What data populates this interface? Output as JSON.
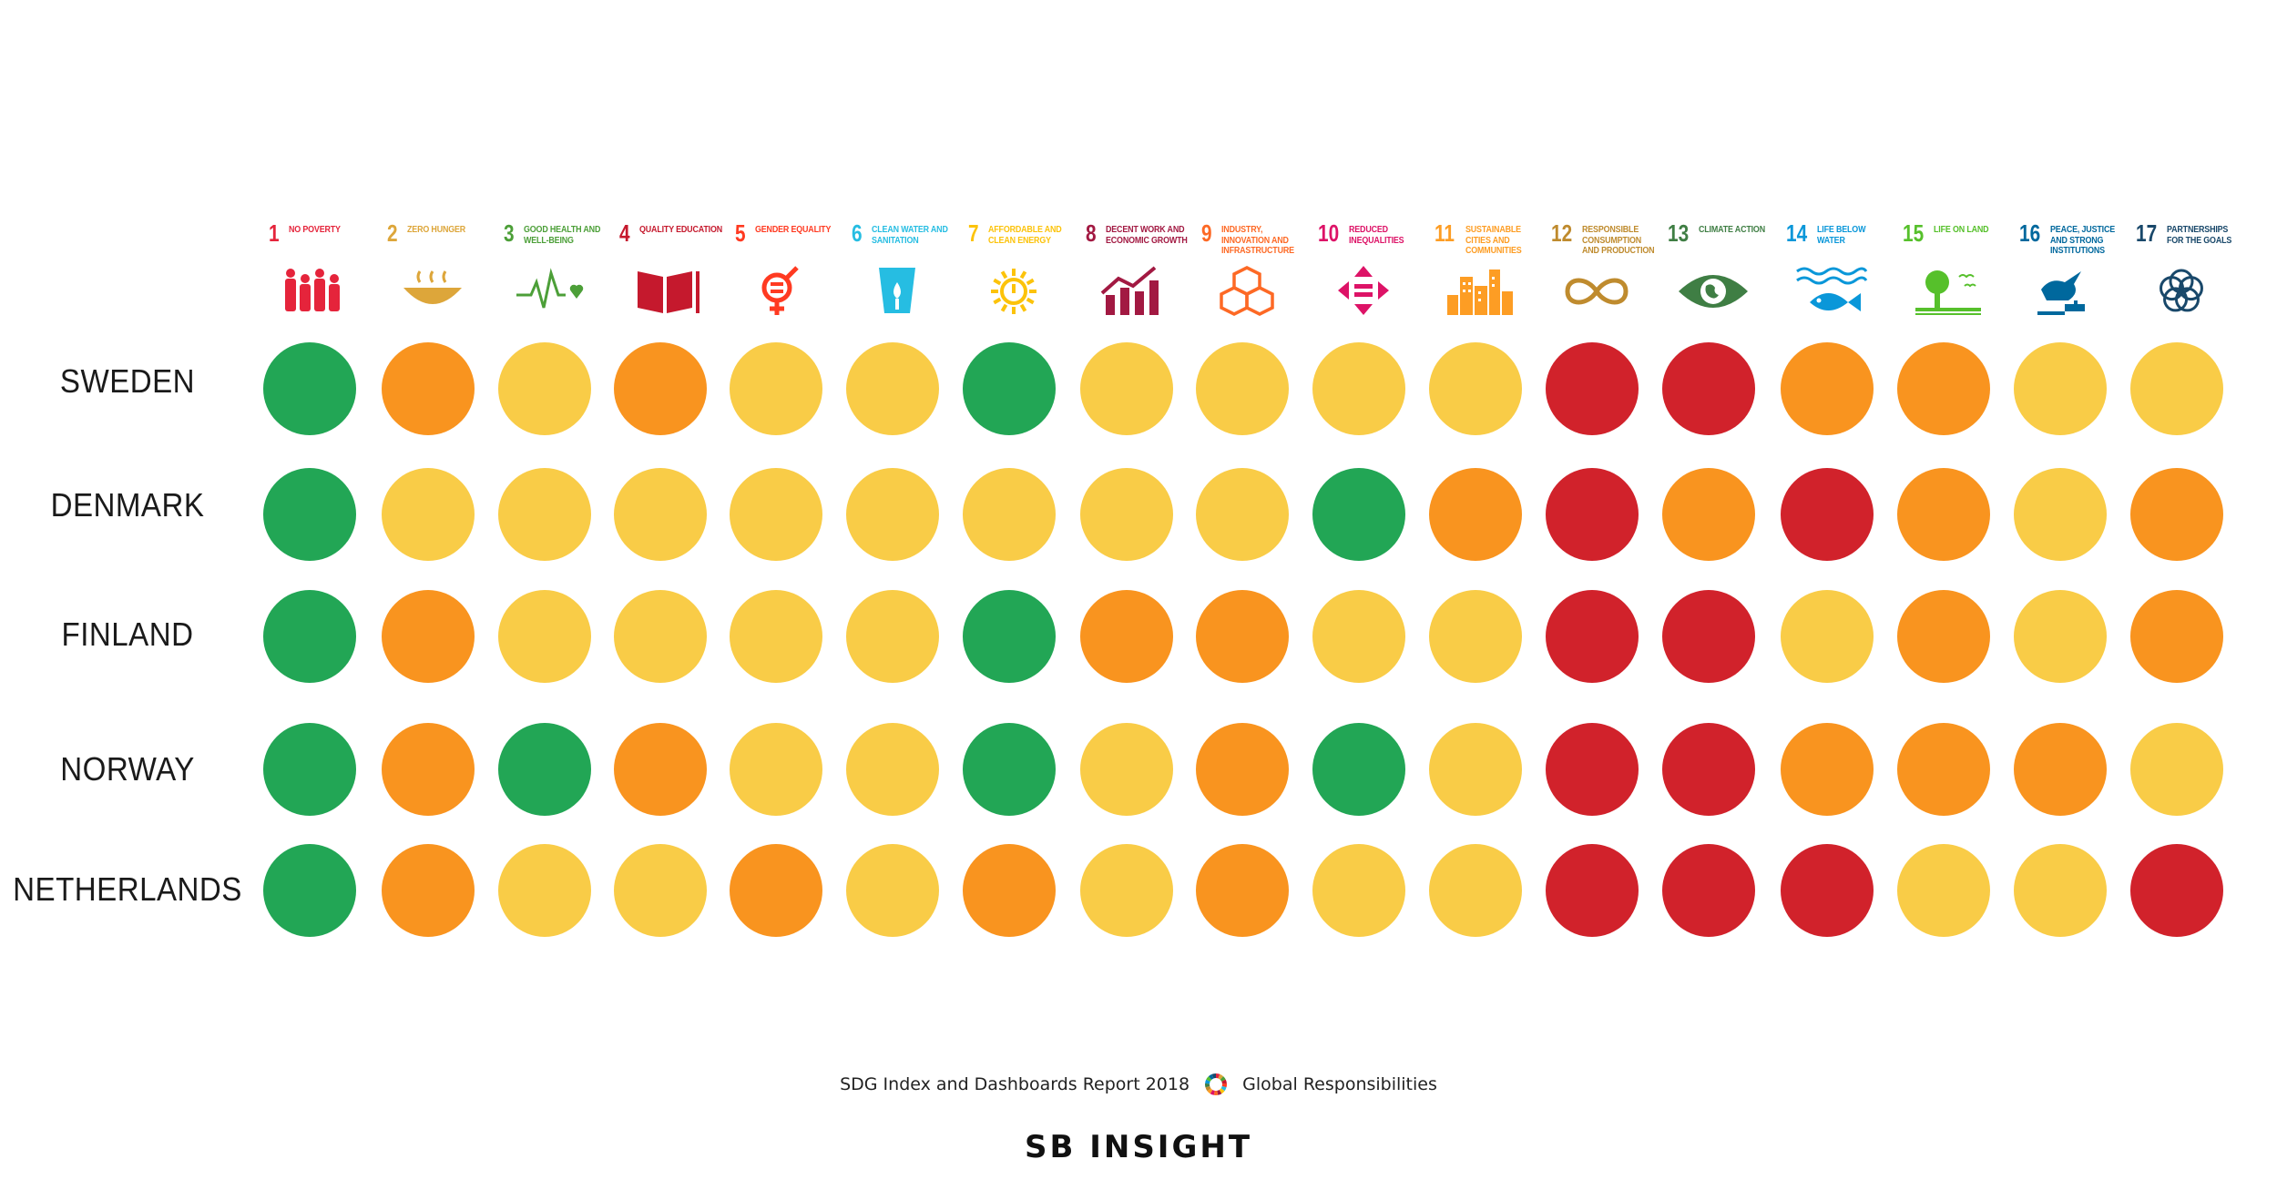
{
  "chart_data": {
    "type": "heatmap",
    "marker": "circle",
    "goals": [
      {
        "num": "1",
        "name": "No poverty",
        "color": "#e5243b",
        "icon": "family-icon"
      },
      {
        "num": "2",
        "name": "Zero hunger",
        "color": "#dda63a",
        "icon": "bowl-icon"
      },
      {
        "num": "3",
        "name": "Good health and well-being",
        "color": "#4c9f38",
        "icon": "heartbeat-icon"
      },
      {
        "num": "4",
        "name": "Quality education",
        "color": "#c5192d",
        "icon": "book-icon"
      },
      {
        "num": "5",
        "name": "Gender equality",
        "color": "#ff3a21",
        "icon": "gender-icon"
      },
      {
        "num": "6",
        "name": "Clean water and sanitation",
        "color": "#26bde2",
        "icon": "water-glass-icon"
      },
      {
        "num": "7",
        "name": "Affordable and clean energy",
        "color": "#fcc30b",
        "icon": "sun-power-icon"
      },
      {
        "num": "8",
        "name": "Decent work and economic growth",
        "color": "#a21942",
        "icon": "growth-chart-icon"
      },
      {
        "num": "9",
        "name": "Industry, innovation and infrastructure",
        "color": "#fd6925",
        "icon": "cubes-icon"
      },
      {
        "num": "10",
        "name": "Reduced inequalities",
        "color": "#dd1367",
        "icon": "equality-arrows-icon"
      },
      {
        "num": "11",
        "name": "Sustainable cities and communities",
        "color": "#fd9d24",
        "icon": "city-icon"
      },
      {
        "num": "12",
        "name": "Responsible consumption and production",
        "color": "#bf8b2e",
        "icon": "infinity-icon"
      },
      {
        "num": "13",
        "name": "Climate action",
        "color": "#3f7e44",
        "icon": "eye-globe-icon"
      },
      {
        "num": "14",
        "name": "Life below water",
        "color": "#0a97d9",
        "icon": "fish-icon"
      },
      {
        "num": "15",
        "name": "Life on land",
        "color": "#56c02b",
        "icon": "tree-icon"
      },
      {
        "num": "16",
        "name": "Peace, justice and strong institutions",
        "color": "#00689d",
        "icon": "dove-gavel-icon"
      },
      {
        "num": "17",
        "name": "Partnerships for the goals",
        "color": "#19486a",
        "icon": "rings-icon"
      }
    ],
    "countries": [
      "SWEDEN",
      "DENMARK",
      "FINLAND",
      "NORWAY",
      "NETHERLANDS"
    ],
    "status_colors": {
      "green": "#22a655",
      "yellow": "#f9cc47",
      "orange": "#f9941f",
      "red": "#d1222b"
    },
    "matrix": [
      [
        "green",
        "orange",
        "yellow",
        "orange",
        "yellow",
        "yellow",
        "green",
        "yellow",
        "yellow",
        "yellow",
        "yellow",
        "red",
        "red",
        "orange",
        "orange",
        "yellow",
        "yellow"
      ],
      [
        "green",
        "yellow",
        "yellow",
        "yellow",
        "yellow",
        "yellow",
        "yellow",
        "yellow",
        "yellow",
        "green",
        "orange",
        "red",
        "orange",
        "red",
        "orange",
        "yellow",
        "orange"
      ],
      [
        "green",
        "orange",
        "yellow",
        "yellow",
        "yellow",
        "yellow",
        "green",
        "orange",
        "orange",
        "yellow",
        "yellow",
        "red",
        "red",
        "yellow",
        "orange",
        "yellow",
        "orange"
      ],
      [
        "green",
        "orange",
        "green",
        "orange",
        "yellow",
        "yellow",
        "green",
        "yellow",
        "orange",
        "green",
        "yellow",
        "red",
        "red",
        "orange",
        "orange",
        "orange",
        "yellow"
      ],
      [
        "green",
        "orange",
        "yellow",
        "yellow",
        "orange",
        "yellow",
        "orange",
        "yellow",
        "orange",
        "yellow",
        "yellow",
        "red",
        "red",
        "red",
        "yellow",
        "yellow",
        "red"
      ]
    ]
  },
  "footer": {
    "report": "SDG Index and Dashboards Report 2018",
    "partner": "Global Responsibilities",
    "brand": "SB INSIGHT"
  }
}
